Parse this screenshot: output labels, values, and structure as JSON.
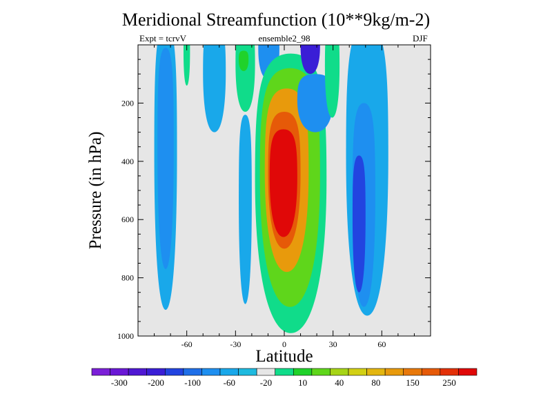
{
  "title": "Meridional Streamfunction (10**9kg/m-2)",
  "subtitle_left": "Expt = tcrvV",
  "subtitle_center": "ensemble2_98",
  "subtitle_right": "DJF",
  "chart_data": {
    "type": "heatmap",
    "xlabel": "Latitude",
    "ylabel": "Pressure (in hPa)",
    "xlim": [
      -90,
      90
    ],
    "ylim": [
      1000,
      0
    ],
    "x_ticks": [
      -60,
      -30,
      0,
      30,
      60
    ],
    "y_ticks": [
      200,
      400,
      600,
      800,
      1000
    ],
    "colorbar": {
      "colors": [
        "#7b1fd8",
        "#6a18d6",
        "#4f17d3",
        "#3a1ed6",
        "#2244e0",
        "#1f6fe8",
        "#1e8ff0",
        "#19a8ea",
        "#1ebadf",
        "#e6e6e6",
        "#10dc8a",
        "#20d22a",
        "#5fd61b",
        "#a6d416",
        "#d2d014",
        "#e3b610",
        "#e89a0c",
        "#e8780a",
        "#e65a08",
        "#e33008",
        "#e00808"
      ],
      "labels": [
        "-300",
        "-200",
        "-100",
        "-60",
        "-20",
        "10",
        "40",
        "80",
        "150",
        "250"
      ]
    },
    "cells": [
      {
        "lat": [
          -80,
          -66
        ],
        "p": [
          0,
          910
        ],
        "level": -10
      },
      {
        "lat": [
          -78,
          -68
        ],
        "p": [
          10,
          770
        ],
        "level": -20
      },
      {
        "lat": [
          -62,
          -58
        ],
        "p": [
          0,
          140
        ],
        "level": 30
      },
      {
        "lat": [
          -50,
          -36
        ],
        "p": [
          0,
          300
        ],
        "level": -10
      },
      {
        "lat": [
          -30,
          -18
        ],
        "p": [
          0,
          230
        ],
        "level": 30
      },
      {
        "lat": [
          -28,
          -22
        ],
        "p": [
          20,
          90
        ],
        "level": 60
      },
      {
        "lat": [
          -28,
          -20
        ],
        "p": [
          240,
          890
        ],
        "level": -10
      },
      {
        "lat": [
          -16,
          -3
        ],
        "p": [
          0,
          120
        ],
        "level": -20
      },
      {
        "lat": [
          -18,
          26
        ],
        "p": [
          30,
          990
        ],
        "level": 40
      },
      {
        "lat": [
          -15,
          22
        ],
        "p": [
          80,
          900
        ],
        "level": 80
      },
      {
        "lat": [
          -12,
          15
        ],
        "p": [
          150,
          780
        ],
        "level": 150
      },
      {
        "lat": [
          -10,
          10
        ],
        "p": [
          230,
          700
        ],
        "level": 250
      },
      {
        "lat": [
          -9,
          8
        ],
        "p": [
          290,
          660
        ],
        "level": 300
      },
      {
        "lat": [
          10,
          22
        ],
        "p": [
          0,
          100
        ],
        "level": -100
      },
      {
        "lat": [
          8,
          30
        ],
        "p": [
          100,
          300
        ],
        "level": -20
      },
      {
        "lat": [
          25,
          34
        ],
        "p": [
          0,
          250
        ],
        "level": 30
      },
      {
        "lat": [
          38,
          64
        ],
        "p": [
          0,
          930
        ],
        "level": -10
      },
      {
        "lat": [
          42,
          56
        ],
        "p": [
          200,
          900
        ],
        "level": -20
      },
      {
        "lat": [
          42,
          50
        ],
        "p": [
          380,
          850
        ],
        "level": -60
      }
    ]
  }
}
